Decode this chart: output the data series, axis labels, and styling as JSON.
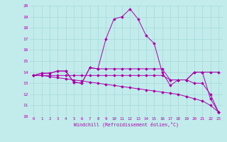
{
  "xlabel": "Windchill (Refroidissement éolien,°C)",
  "ylabel": "",
  "xlim": [
    -0.5,
    23.5
  ],
  "ylim": [
    10,
    20
  ],
  "xticks": [
    0,
    1,
    2,
    3,
    4,
    5,
    6,
    7,
    8,
    9,
    10,
    11,
    12,
    13,
    14,
    15,
    16,
    17,
    18,
    19,
    20,
    21,
    22,
    23
  ],
  "yticks": [
    10,
    11,
    12,
    13,
    14,
    15,
    16,
    17,
    18,
    19,
    20
  ],
  "background_color": "#c2ecec",
  "grid_color": "#a8d8d8",
  "line_color": "#aa00aa",
  "lines": [
    {
      "x": [
        0,
        1,
        2,
        3,
        4,
        5,
        6,
        7,
        8,
        9,
        10,
        11,
        12,
        13,
        14,
        15,
        16,
        17,
        18,
        19,
        20,
        21,
        22,
        23
      ],
      "y": [
        13.7,
        13.9,
        13.9,
        14.1,
        14.1,
        13.1,
        13.0,
        14.4,
        14.3,
        17.0,
        18.8,
        19.0,
        19.7,
        18.8,
        17.3,
        16.6,
        14.0,
        12.8,
        13.3,
        13.3,
        14.0,
        14.0,
        11.6,
        10.4
      ]
    },
    {
      "x": [
        0,
        1,
        2,
        3,
        4,
        5,
        6,
        7,
        8,
        9,
        10,
        11,
        12,
        13,
        14,
        15,
        16,
        17,
        18,
        19,
        20,
        21,
        22,
        23
      ],
      "y": [
        13.7,
        13.9,
        13.9,
        14.1,
        14.1,
        13.1,
        13.0,
        14.4,
        14.3,
        14.3,
        14.3,
        14.3,
        14.3,
        14.3,
        14.3,
        14.3,
        14.3,
        13.3,
        13.3,
        13.3,
        14.0,
        14.0,
        14.0,
        14.0
      ]
    },
    {
      "x": [
        0,
        1,
        2,
        3,
        4,
        5,
        6,
        7,
        8,
        9,
        10,
        11,
        12,
        13,
        14,
        15,
        16,
        17,
        18,
        19,
        20,
        21,
        22,
        23
      ],
      "y": [
        13.7,
        13.7,
        13.7,
        13.7,
        13.7,
        13.7,
        13.7,
        13.7,
        13.7,
        13.7,
        13.7,
        13.7,
        13.7,
        13.7,
        13.7,
        13.7,
        13.7,
        13.3,
        13.3,
        13.3,
        13.0,
        13.0,
        12.0,
        10.4
      ]
    },
    {
      "x": [
        0,
        1,
        2,
        3,
        4,
        5,
        6,
        7,
        8,
        9,
        10,
        11,
        12,
        13,
        14,
        15,
        16,
        17,
        18,
        19,
        20,
        21,
        22,
        23
      ],
      "y": [
        13.7,
        13.7,
        13.6,
        13.5,
        13.4,
        13.3,
        13.2,
        13.1,
        13.0,
        12.9,
        12.8,
        12.7,
        12.6,
        12.5,
        12.4,
        12.3,
        12.2,
        12.1,
        12.0,
        11.8,
        11.6,
        11.4,
        11.0,
        10.4
      ]
    }
  ]
}
